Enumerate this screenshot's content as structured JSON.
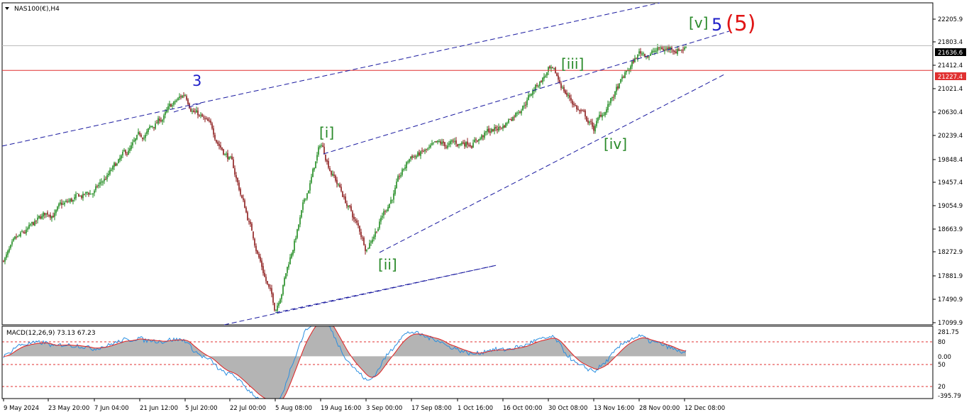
{
  "main_title": "NAS100(€),H4",
  "macd_title": "MACD(12,26,9) 73.13 67.23",
  "price_ticks": [
    "22205.9",
    "21803.4",
    "21412.4",
    "21021.4",
    "20630.4",
    "20239.4",
    "19848.4",
    "19457.4",
    "19054.9",
    "18663.9",
    "18272.9",
    "17881.9",
    "17490.9",
    "17099.9"
  ],
  "macd_ticks": [
    "281.75",
    "80",
    "0.00",
    "50",
    "20",
    "-395.79"
  ],
  "time_ticks": [
    "9 May 2024",
    "23 May 20:00",
    "7 Jun 04:00",
    "21 Jun 12:00",
    "5 Jul 20:00",
    "22 Jul 00:00",
    "5 Aug 08:00",
    "19 Aug 16:00",
    "3 Sep 00:00",
    "17 Sep 08:00",
    "1 Oct 16:00",
    "16 Oct 00:00",
    "30 Oct 08:00",
    "13 Nov 16:00",
    "28 Nov 00:00",
    "12 Dec 08:00"
  ],
  "price_labels": {
    "current": "21636.6",
    "line": "21227.4"
  },
  "wave_labels": {
    "w3": "3",
    "i": "[i]",
    "ii": "[ii]",
    "iii": "[iii]",
    "iv": "[iv]",
    "v": "[v]",
    "w5": "5",
    "W5": "(5)"
  },
  "colors": {
    "bull": "#1e8a1e",
    "bear": "#8b1a1a",
    "hline": "#e03030",
    "channel": "#1a1aa0",
    "macd_line": "#2a8ee0",
    "signal": "#e02020",
    "hist": "#b4b4b4",
    "wave_green": "#2a8a2a",
    "wave_blue": "#1f1fc8",
    "wave_red": "#e01515"
  },
  "chart_data": [
    {
      "type": "candlestick",
      "title": "NAS100(€),H4",
      "ylim": [
        17000,
        22350
      ],
      "horizontal_line": 21227.4,
      "current_price": 21636.6,
      "x_range": [
        "9 May 2024",
        "12 Dec 08:00"
      ],
      "anchors": [
        [
          "9 May 2024",
          18110
        ],
        [
          "23 May 20:00",
          18840
        ],
        [
          "7 Jun 04:00",
          19200
        ],
        [
          "21 Jun 12:00",
          20050
        ],
        [
          "5 Jul 20:00",
          20820
        ],
        [
          "22 Jul 00:00",
          19780
        ],
        [
          "5 Aug 08:00",
          17250
        ],
        [
          "19 Aug 16:00",
          19990
        ],
        [
          "3 Sep 00:00",
          18300
        ],
        [
          "17 Sep 08:00",
          19800
        ],
        [
          "1 Oct 16:00",
          19980
        ],
        [
          "16 Oct 00:00",
          20300
        ],
        [
          "30 Oct 08:00",
          21230
        ],
        [
          "13 Nov 16:00",
          20250
        ],
        [
          "28 Nov 00:00",
          21500
        ],
        [
          "12 Dec 08:00",
          21640
        ]
      ],
      "waves": [
        {
          "label": "3",
          "date": "5 Jul 20:00",
          "price": 20820
        },
        {
          "label": "[i]",
          "date": "19 Aug 16:00",
          "price": 19990
        },
        {
          "label": "[ii]",
          "date": "3 Sep 00:00",
          "price": 18300
        },
        {
          "label": "[iii]",
          "date": "30 Oct 08:00",
          "price": 21230
        },
        {
          "label": "[iv]",
          "date": "13 Nov 16:00",
          "price": 20250
        },
        {
          "label": "[v]",
          "date": "12 Dec 08:00",
          "price": 21780
        }
      ]
    },
    {
      "type": "line",
      "title": "MACD(12,26,9) 73.13 67.23",
      "macd": 73.13,
      "signal": 67.23,
      "ylim": [
        -395.79,
        281.75
      ],
      "levels": [
        80,
        0,
        20
      ]
    }
  ]
}
